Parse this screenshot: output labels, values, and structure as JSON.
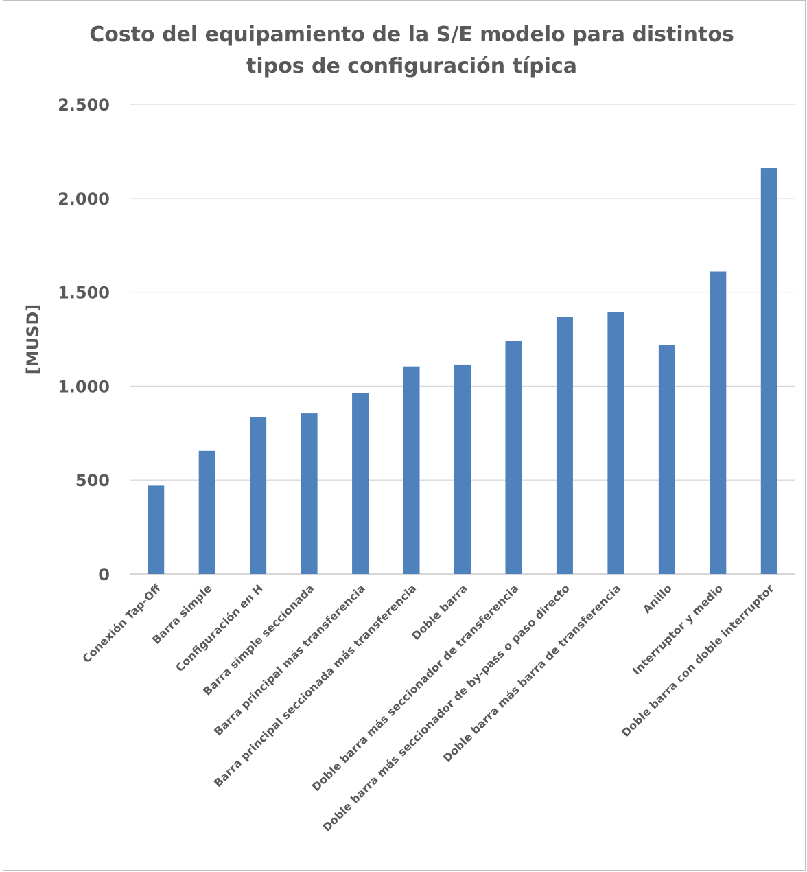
{
  "chart_data": {
    "type": "bar",
    "title": "Costo del equipamiento de la S/E modelo para distintos tipos de configuración típica",
    "title_lines": [
      "Costo del equipamiento de la S/E modelo para distintos",
      "tipos de configuración típica"
    ],
    "ylabel": "[MUSD]",
    "xlabel": "",
    "ylim": [
      0,
      2500
    ],
    "yticks": [
      0,
      500,
      1000,
      1500,
      2000,
      2500
    ],
    "ytick_labels": [
      "0",
      "500",
      "1.000",
      "1.500",
      "2.000",
      "2.500"
    ],
    "grid": true,
    "bar_color": "#4f81bd",
    "categories": [
      "Conexión Tap-Off",
      "Barra simple",
      "Configuración en H",
      "Barra simple seccionada",
      "Barra principal más transferencia",
      "Barra principal seccionada más transferencia",
      "Doble barra",
      "Doble barra más seccionador de transferencia",
      "Doble barra más seccionador de by-pass o paso directo",
      "Doble barra más barra de transferencia",
      "Anillo",
      "Interruptor y medio",
      "Doble barra con doble interruptor"
    ],
    "values": [
      470,
      655,
      835,
      855,
      965,
      1105,
      1115,
      1240,
      1370,
      1395,
      1220,
      1610,
      2160
    ]
  }
}
